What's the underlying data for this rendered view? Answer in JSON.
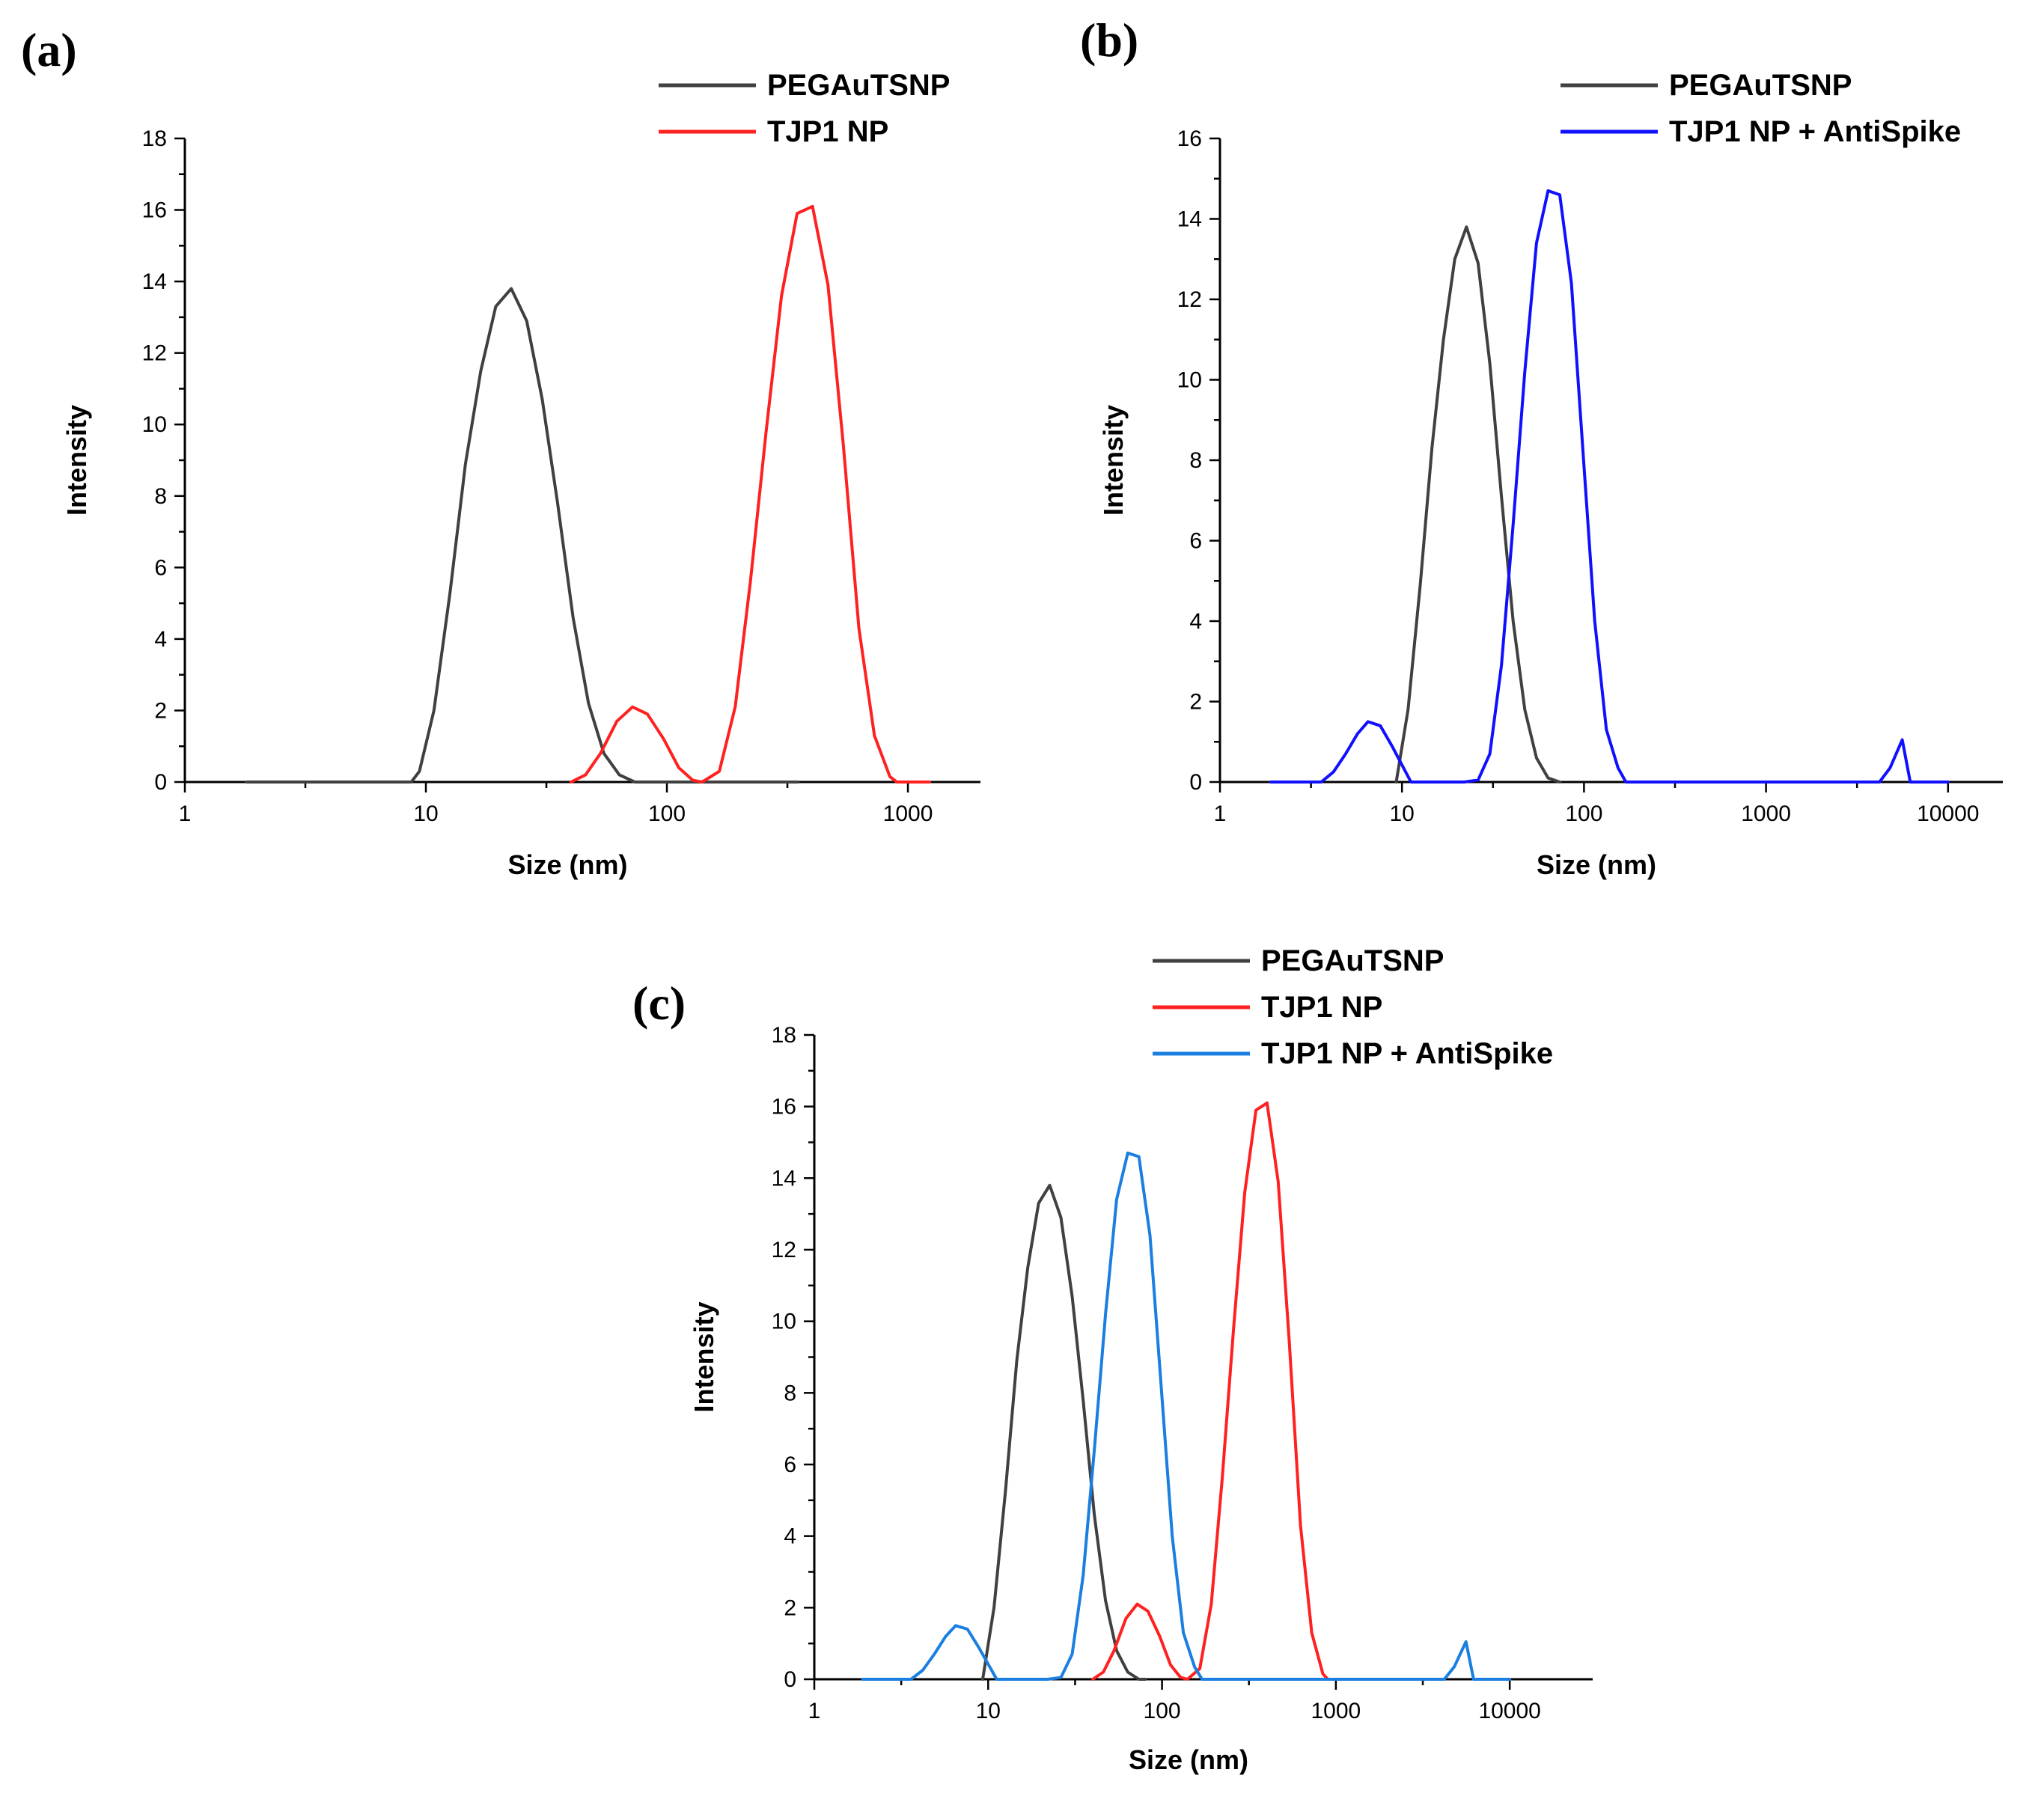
{
  "chart_data": [
    {
      "panel": "(a)",
      "type": "line",
      "xscale": "log",
      "xlabel": "Size (nm)",
      "ylabel": "Intensity",
      "xlim": [
        1,
        2000
      ],
      "ylim": [
        0,
        18
      ],
      "xticks": [
        "1",
        "10",
        "100",
        "1000"
      ],
      "yticks": [
        "0",
        "2",
        "4",
        "6",
        "8",
        "10",
        "12",
        "14",
        "16",
        "18"
      ],
      "legend": "top-right",
      "series": [
        {
          "name": "PEGAuTSNP",
          "color": "#404040",
          "x": [
            1.8,
            8.7,
            9.4,
            10.8,
            12.6,
            14.6,
            16.9,
            19.5,
            22.6,
            26.2,
            30.4,
            35.2,
            40.8,
            47.3,
            54.8,
            63.5,
            73.6,
            80,
            100,
            200,
            350
          ],
          "y": [
            0,
            0,
            0.3,
            2.0,
            5.3,
            8.9,
            11.5,
            13.3,
            13.8,
            12.9,
            10.7,
            7.8,
            4.6,
            2.2,
            0.8,
            0.2,
            0,
            0,
            0,
            0,
            0
          ]
        },
        {
          "name": "TJP1 NP",
          "color": "#ff2020",
          "x": [
            40,
            46,
            53,
            62,
            72,
            83,
            97,
            112,
            128,
            140,
            165,
            192,
            222,
            258,
            299,
            347,
            402,
            466,
            540,
            626,
            726,
            842,
            900,
            1230
          ],
          "y": [
            0,
            0.2,
            0.8,
            1.7,
            2.1,
            1.9,
            1.2,
            0.4,
            0.05,
            0,
            0.3,
            2.1,
            5.6,
            9.8,
            13.6,
            15.9,
            16.1,
            13.9,
            9.4,
            4.3,
            1.3,
            0.15,
            0,
            0
          ]
        }
      ]
    },
    {
      "panel": "(b)",
      "type": "line",
      "xscale": "log",
      "xlabel": "Size (nm)",
      "ylabel": "Intensity",
      "xlim": [
        1,
        20000
      ],
      "ylim": [
        0,
        16
      ],
      "xticks": [
        "1",
        "10",
        "100",
        "1000",
        "10000"
      ],
      "yticks": [
        "0",
        "2",
        "4",
        "6",
        "8",
        "10",
        "12",
        "14",
        "16"
      ],
      "legend": "top-right",
      "series": [
        {
          "name": "PEGAuTSNP",
          "color": "#404040",
          "x": [
            9.3,
            10.8,
            12.6,
            14.6,
            16.9,
            19.5,
            22.6,
            26.2,
            30.4,
            35.2,
            40.8,
            47.3,
            54.8,
            63.5,
            73.6
          ],
          "y": [
            0,
            1.8,
            4.9,
            8.3,
            11.0,
            13.0,
            13.8,
            12.9,
            10.4,
            7.1,
            4.0,
            1.8,
            0.6,
            0.1,
            0
          ]
        },
        {
          "name": "TJP1 NP + AntiSpike",
          "color": "#1010ff",
          "x": [
            1.9,
            3.6,
            4.2,
            4.9,
            5.7,
            6.5,
            7.6,
            8.8,
            10.2,
            11.2,
            22,
            26.2,
            30.4,
            35.2,
            40.8,
            47.3,
            54.8,
            63.5,
            73.6,
            85.3,
            98.8,
            114.5,
            132.7,
            153.8,
            170,
            4200,
            4800,
            5600,
            6200,
            10000
          ],
          "y": [
            0,
            0,
            0.25,
            0.7,
            1.2,
            1.5,
            1.4,
            0.9,
            0.35,
            0,
            0,
            0.05,
            0.7,
            2.9,
            6.4,
            10.2,
            13.4,
            14.7,
            14.6,
            12.4,
            8.2,
            4.0,
            1.3,
            0.35,
            0,
            0,
            0.35,
            1.05,
            0,
            0
          ]
        }
      ]
    },
    {
      "panel": "(c)",
      "type": "line",
      "xscale": "log",
      "xlabel": "Size (nm)",
      "ylabel": "Intensity",
      "xlim": [
        1,
        30000
      ],
      "ylim": [
        0,
        18
      ],
      "xticks": [
        "1",
        "10",
        "100",
        "1000",
        "10000"
      ],
      "yticks": [
        "0",
        "2",
        "4",
        "6",
        "8",
        "10",
        "12",
        "14",
        "16",
        "18"
      ],
      "legend": "top-left",
      "series": [
        {
          "name": "PEGAuTSNP",
          "color": "#404040",
          "x": [
            9.3,
            10.8,
            12.6,
            14.6,
            16.9,
            19.5,
            22.6,
            26.2,
            30.4,
            35.2,
            40.8,
            47.3,
            54.8,
            63.5,
            73.6,
            80
          ],
          "y": [
            0,
            2.0,
            5.3,
            8.9,
            11.5,
            13.3,
            13.8,
            12.9,
            10.7,
            7.8,
            4.6,
            2.2,
            0.8,
            0.2,
            0,
            0
          ]
        },
        {
          "name": "TJP1 NP",
          "color": "#ff2020",
          "x": [
            40,
            46,
            53,
            62,
            72,
            83,
            97,
            112,
            128,
            140,
            165,
            192,
            222,
            258,
            299,
            347,
            402,
            466,
            540,
            626,
            726,
            842,
            900
          ],
          "y": [
            0,
            0.2,
            0.8,
            1.7,
            2.1,
            1.9,
            1.2,
            0.4,
            0.05,
            0,
            0.3,
            2.1,
            5.6,
            9.8,
            13.6,
            15.9,
            16.1,
            13.9,
            9.4,
            4.3,
            1.3,
            0.15,
            0
          ]
        },
        {
          "name": "TJP1 NP + AntiSpike",
          "color": "#1a7fe0",
          "x": [
            1.9,
            3.6,
            4.2,
            4.9,
            5.7,
            6.5,
            7.6,
            8.8,
            10.2,
            11.2,
            22,
            26.2,
            30.4,
            35.2,
            40.8,
            47.3,
            54.8,
            63.5,
            73.6,
            85.3,
            98.8,
            114.5,
            132.7,
            153.8,
            170,
            4200,
            4800,
            5600,
            6200,
            10000
          ],
          "y": [
            0,
            0,
            0.25,
            0.7,
            1.2,
            1.5,
            1.4,
            0.9,
            0.35,
            0,
            0,
            0.05,
            0.7,
            2.9,
            6.4,
            10.2,
            13.4,
            14.7,
            14.6,
            12.4,
            8.2,
            4.0,
            1.3,
            0.35,
            0,
            0,
            0.35,
            1.05,
            0,
            0
          ]
        }
      ]
    }
  ]
}
